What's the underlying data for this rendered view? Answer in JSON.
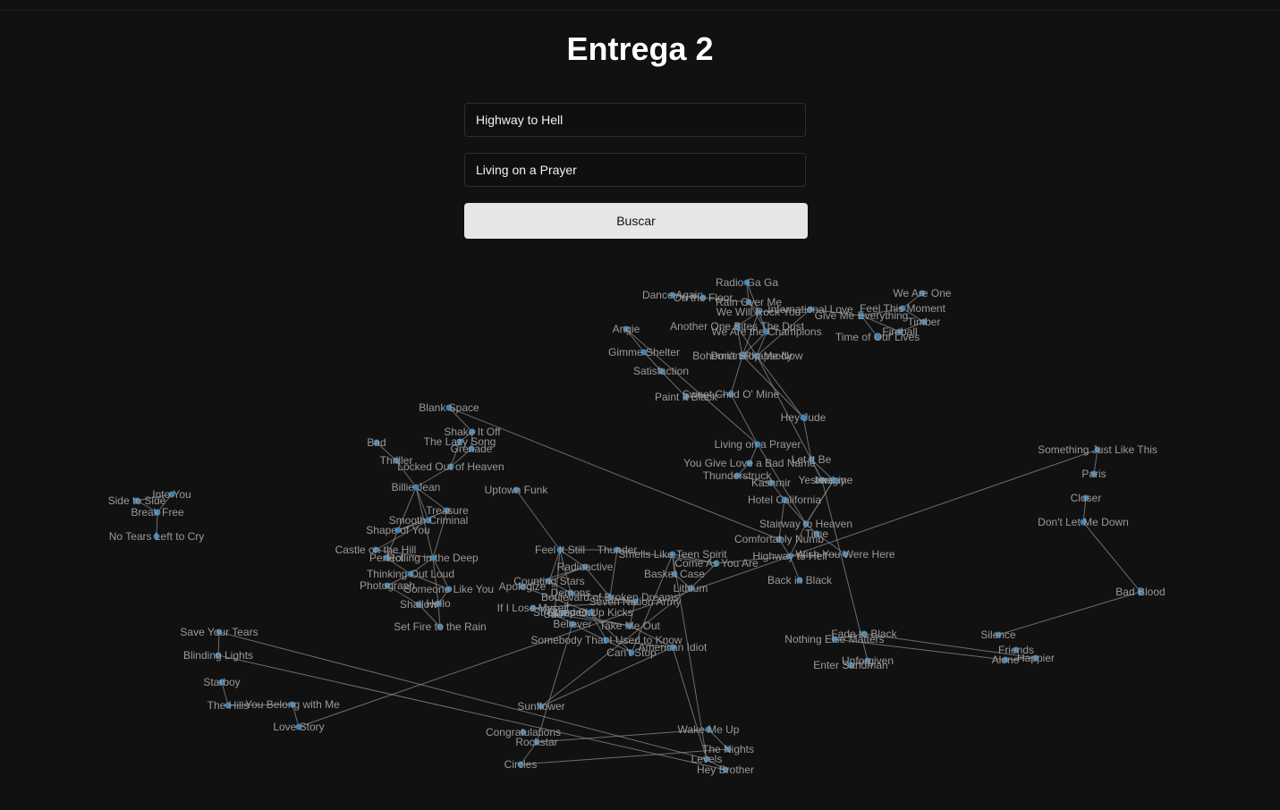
{
  "title": "Entrega 2",
  "search": {
    "origin_value": "Highway to Hell",
    "destination_value": "Living on a Prayer",
    "button_label": "Buscar"
  },
  "colors": {
    "background": "#111111",
    "node": "#3d82b5",
    "edge": "#8e8e8e",
    "label": "#9a9a9a",
    "button": "#e6e6e6"
  },
  "graph": {
    "nodes": [
      "Radio Ga Ga",
      "Dance Again",
      "On the Floor",
      "Rain Over Me",
      "We Will Rock You",
      "International Love",
      "Give Me Everything",
      "Feel This Moment",
      "We Are One",
      "Timber",
      "Fireball",
      "Time of Our Lives",
      "Another One Bites The Dust",
      "We Are the Champions",
      "Bohemian Rhapsody",
      "Don't Stop Me Now",
      "Angie",
      "Gimme Shelter",
      "Satisfaction",
      "Paint It Black",
      "Sweet Child O' Mine",
      "Hey Jude",
      "Living on a Prayer",
      "You Give Love a Bad Name",
      "Let It Be",
      "Thunderstruck",
      "Kashmir",
      "Yesterday",
      "Imagine",
      "Hotel California",
      "Stairway to Heaven",
      "Comfortably Numb",
      "Time",
      "Highway to Hell",
      "Wish You Were Here",
      "Back in Black",
      "Blank Space",
      "Shake It Off",
      "The Lazy Song",
      "Grenade",
      "Bad",
      "Thriller",
      "Locked Out of Heaven",
      "Billie Jean",
      "Uptown Funk",
      "Treasure",
      "Smooth Criminal",
      "Shape of You",
      "Castle on the Hill",
      "Perfect",
      "Rolling in the Deep",
      "Thinking Out Loud",
      "Photograph",
      "Someone Like You",
      "Shallow",
      "Hello",
      "Set Fire to the Rain",
      "Into You",
      "Side to Side",
      "Break Free",
      "No Tears Left to Cry",
      "Feel It Still",
      "Thunder",
      "Radioactive",
      "Counting Stars",
      "Apologize",
      "Demons",
      "Boulevard of Broken Dreams",
      "Seven Nation Army",
      "If I Lose Myself",
      "Sad!",
      "Stressed Out",
      "Pumped Up Kicks",
      "Believer",
      "Take Me Out",
      "Somebody That I Used to Know",
      "Can't Stop",
      "American Idiot",
      "Smells Like Teen Spirit",
      "Come As You Are",
      "Basket Case",
      "Lithium",
      "Sunflower",
      "Congratulations",
      "Rockstar",
      "Circles",
      "Wake Me Up",
      "The Nights",
      "Levels",
      "Hey Brother",
      "Save Your Tears",
      "Blinding Lights",
      "Starboy",
      "The Hills",
      "You Belong with Me",
      "Love Story",
      "Something Just Like This",
      "Paris",
      "Closer",
      "Don't Let Me Down",
      "Bad Blood",
      "Silence",
      "Friends",
      "Alone",
      "Happier",
      "Nothing Else Matters",
      "Fade to Black",
      "Enter Sandman",
      "Unforgiven"
    ]
  }
}
